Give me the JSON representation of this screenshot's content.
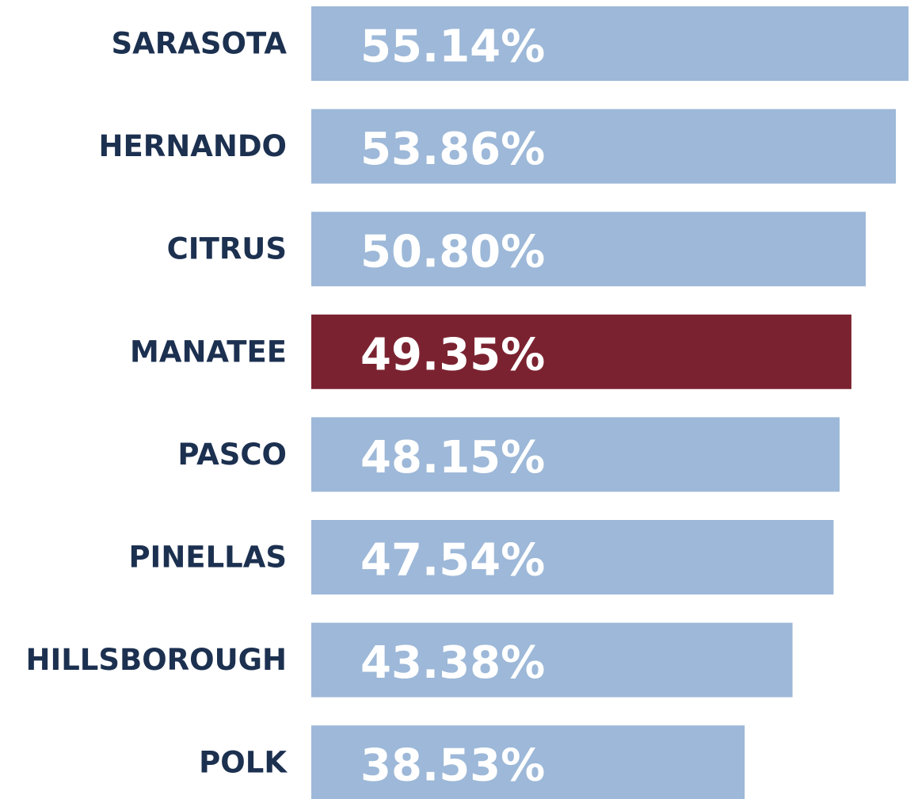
{
  "chart_data": {
    "type": "hbar",
    "categories": [
      "SARASOTA",
      "HERNANDO",
      "CITRUS",
      "MANATEE",
      "PASCO",
      "PINELLAS",
      "HILLSBOROUGH",
      "POLK"
    ],
    "values": [
      55.14,
      53.86,
      50.8,
      49.35,
      48.15,
      47.54,
      43.38,
      38.53
    ],
    "value_labels": [
      "55.14%",
      "53.86%",
      "50.80%",
      "49.35%",
      "48.15%",
      "47.54%",
      "43.38%",
      "38.53%"
    ],
    "colors": [
      "#9db8d8",
      "#9db8d8",
      "#9db8d8",
      "#7b2230",
      "#9db8d8",
      "#9db8d8",
      "#9db8d8",
      "#9db8d8"
    ],
    "xlim": [
      -5.4,
      56.1
    ]
  }
}
